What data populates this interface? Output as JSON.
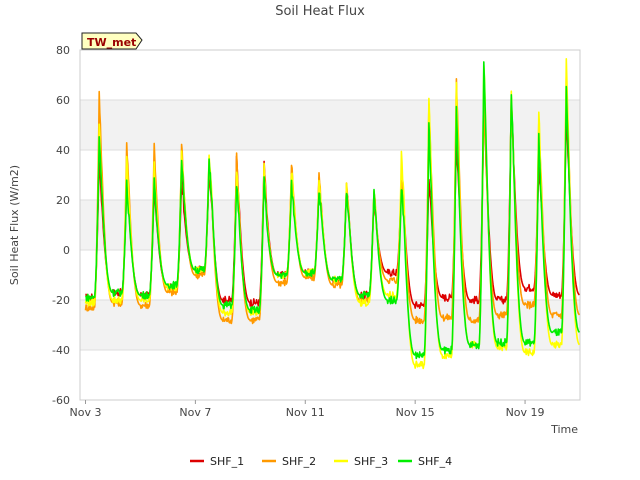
{
  "chart_data": {
    "type": "line",
    "title": "Soil Heat Flux",
    "xlabel": "Time",
    "ylabel": "Soil Heat Flux (W/m2)",
    "station_label": "TW_met",
    "xlim": [
      2.8,
      21.0
    ],
    "ylim": [
      -60,
      80
    ],
    "yticks": [
      -60,
      -40,
      -20,
      0,
      20,
      40,
      60,
      80
    ],
    "xticks": [
      {
        "value": 3,
        "label": "Nov 3"
      },
      {
        "value": 7,
        "label": "Nov 7"
      },
      {
        "value": 11,
        "label": "Nov 11"
      },
      {
        "value": 15,
        "label": "Nov 15"
      },
      {
        "value": 19,
        "label": "Nov 19"
      }
    ],
    "legend_position": "bottom",
    "series": [
      {
        "name": "SHF_1",
        "color": "#dd0000",
        "daily_minimum": [
          -19,
          -17,
          -18,
          -15,
          -8,
          -20,
          -21,
          -10,
          -9,
          -12,
          -18,
          -9,
          -22,
          -19,
          -20,
          -20,
          -15,
          -18
        ],
        "daily_peak": [
          38,
          28,
          26,
          30,
          33,
          36,
          35,
          30,
          27,
          25,
          22,
          27,
          30,
          45,
          58,
          60,
          35,
          55
        ]
      },
      {
        "name": "SHF_2",
        "color": "#ff9900",
        "daily_minimum": [
          -23,
          -21,
          -22,
          -17,
          -10,
          -28,
          -28,
          -13,
          -11,
          -14,
          -20,
          -12,
          -28,
          -27,
          -28,
          -26,
          -22,
          -26
        ],
        "daily_peak": [
          62,
          42,
          42,
          42,
          36,
          37,
          34,
          35,
          30,
          26,
          25,
          27,
          58,
          68,
          60,
          60,
          50,
          70
        ]
      },
      {
        "name": "SHF_3",
        "color": "#ffff00",
        "daily_minimum": [
          -21,
          -20,
          -20,
          -15,
          -8,
          -25,
          -25,
          -10,
          -9,
          -12,
          -21,
          -18,
          -46,
          -42,
          -38,
          -39,
          -41,
          -38
        ],
        "daily_peak": [
          50,
          36,
          34,
          40,
          38,
          33,
          33,
          32,
          28,
          25,
          24,
          38,
          62,
          68,
          76,
          64,
          56,
          76
        ]
      },
      {
        "name": "SHF_4",
        "color": "#00ee00",
        "daily_minimum": [
          -19,
          -17,
          -18,
          -14,
          -8,
          -22,
          -24,
          -10,
          -9,
          -12,
          -18,
          -20,
          -42,
          -40,
          -38,
          -37,
          -37,
          -33
        ],
        "daily_peak": [
          46,
          26,
          27,
          37,
          36,
          27,
          29,
          26,
          24,
          24,
          23,
          26,
          50,
          56,
          76,
          64,
          45,
          64
        ]
      }
    ]
  }
}
